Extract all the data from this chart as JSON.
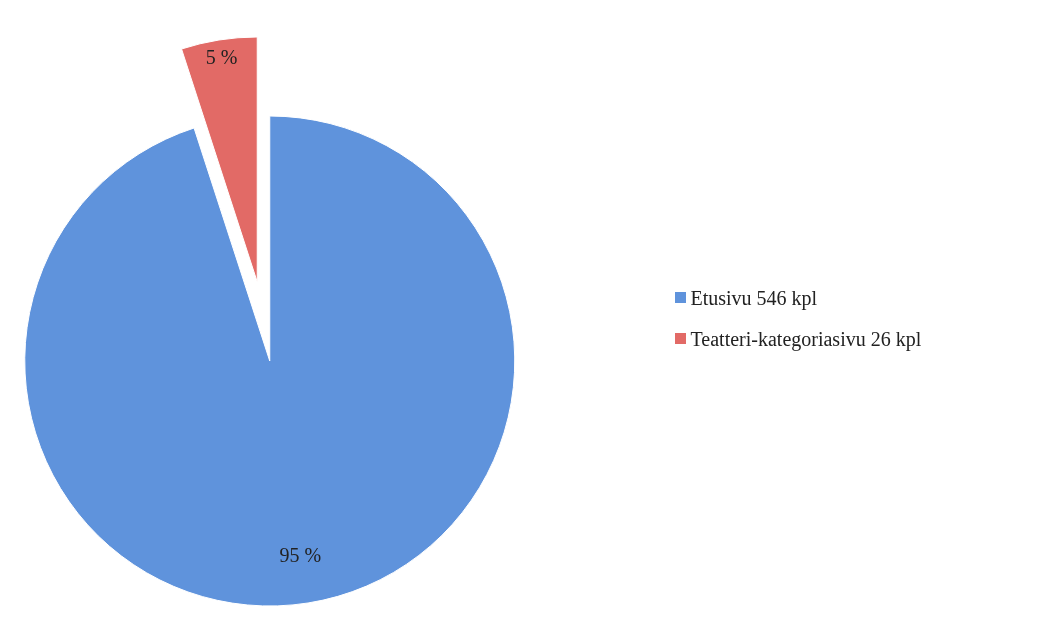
{
  "chart_data": {
    "type": "pie",
    "categories": [
      "Etusivu 546 kpl",
      "Teatteri-kategoriasivu 26 kpl"
    ],
    "values": [
      95,
      5
    ],
    "value_labels": [
      "95 %",
      "5 %"
    ],
    "colors": [
      "#5f93dc",
      "#e26a66"
    ],
    "legend": "right"
  }
}
